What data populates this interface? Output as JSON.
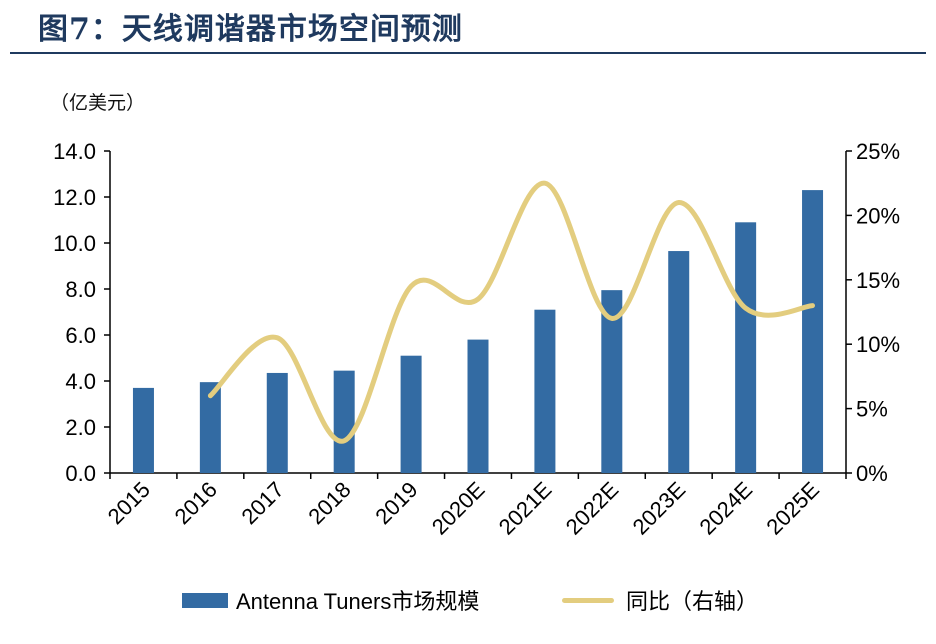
{
  "header": {
    "title": "图7：天线调谐器市场空间预测"
  },
  "chart_data": {
    "type": "bar",
    "unit_label": "（亿美元）",
    "categories": [
      "2015",
      "2016",
      "2017",
      "2018",
      "2019",
      "2020E",
      "2021E",
      "2022E",
      "2023E",
      "2024E",
      "2025E"
    ],
    "series": [
      {
        "name": "Antenna Tuners市场规模",
        "type": "bar",
        "axis": "left",
        "color": "#336ba3",
        "values": [
          3.7,
          3.95,
          4.35,
          4.45,
          5.1,
          5.8,
          7.1,
          7.95,
          9.65,
          10.9,
          12.3
        ]
      },
      {
        "name": "同比（右轴）",
        "type": "line",
        "axis": "right",
        "color": "#e3cd7f",
        "values": [
          null,
          6.0,
          10.5,
          2.5,
          14.5,
          13.5,
          22.5,
          12.0,
          21.0,
          12.8,
          13.0
        ]
      }
    ],
    "y_left": {
      "min": 0,
      "max": 14,
      "ticks": [
        "0.0",
        "2.0",
        "4.0",
        "6.0",
        "8.0",
        "10.0",
        "12.0",
        "14.0"
      ]
    },
    "y_right": {
      "min": 0,
      "max": 25,
      "ticks": [
        "0%",
        "5%",
        "10%",
        "15%",
        "20%",
        "25%"
      ]
    },
    "grid": false,
    "legend_position": "bottom"
  }
}
